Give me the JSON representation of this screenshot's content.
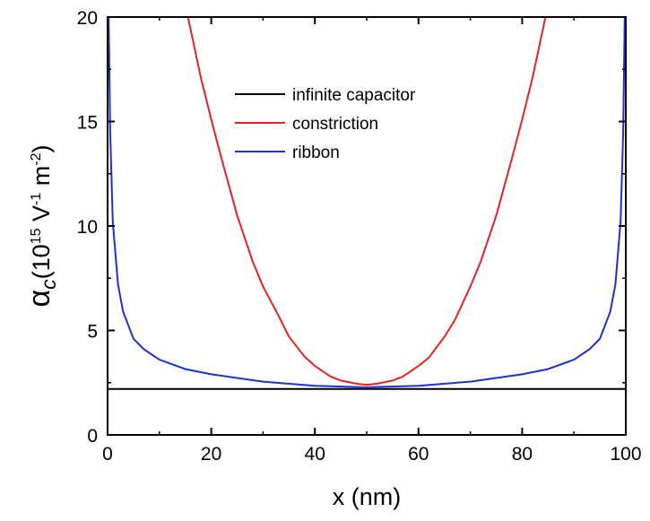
{
  "chart_data": {
    "type": "line",
    "title": "",
    "xlabel": "x (nm)",
    "ylabel": {
      "symbol": "α",
      "subscript": "c",
      "unit_open": "(10",
      "unit_exp1": "15",
      "unit_mid": " V",
      "unit_exp2": "-1",
      "unit_mid2": " m",
      "unit_exp3": "-2",
      "unit_close": ")"
    },
    "xlim": [
      0,
      100
    ],
    "ylim": [
      0,
      20
    ],
    "xticks": [
      0,
      20,
      40,
      60,
      80,
      100
    ],
    "yticks": [
      0,
      5,
      10,
      15,
      20
    ],
    "grid": false,
    "legend_position": "top-center",
    "series": [
      {
        "name": "infinite capacitor",
        "color": "#000000",
        "x": [
          0,
          100
        ],
        "y": [
          2.2,
          2.2
        ]
      },
      {
        "name": "constriction",
        "color": "#e8231f",
        "x": [
          15.5,
          18,
          20,
          22,
          25,
          28,
          30,
          33,
          35,
          38,
          40,
          43,
          45,
          48,
          50,
          52,
          55,
          57,
          60,
          62,
          65,
          67,
          70,
          72,
          75,
          78,
          80,
          82,
          84.5
        ],
        "y": [
          20,
          17.1,
          15.1,
          13.2,
          10.5,
          8.3,
          7.1,
          5.7,
          4.7,
          3.75,
          3.3,
          2.8,
          2.6,
          2.45,
          2.4,
          2.45,
          2.6,
          2.8,
          3.3,
          3.7,
          4.7,
          5.5,
          7.1,
          8.3,
          10.5,
          13.2,
          15.1,
          17.1,
          20
        ]
      },
      {
        "name": "ribbon",
        "color": "#1f2fd6",
        "x": [
          0.2,
          0.5,
          1,
          2,
          3,
          5,
          7,
          10,
          15,
          20,
          30,
          40,
          50,
          60,
          70,
          80,
          85,
          90,
          93,
          95,
          97,
          98,
          99,
          99.5,
          99.8
        ],
        "y": [
          20,
          14.5,
          10.2,
          7.2,
          5.9,
          4.6,
          4.1,
          3.6,
          3.15,
          2.9,
          2.55,
          2.35,
          2.28,
          2.35,
          2.55,
          2.9,
          3.15,
          3.6,
          4.1,
          4.6,
          5.9,
          7.2,
          10.2,
          14.5,
          20
        ]
      }
    ]
  }
}
